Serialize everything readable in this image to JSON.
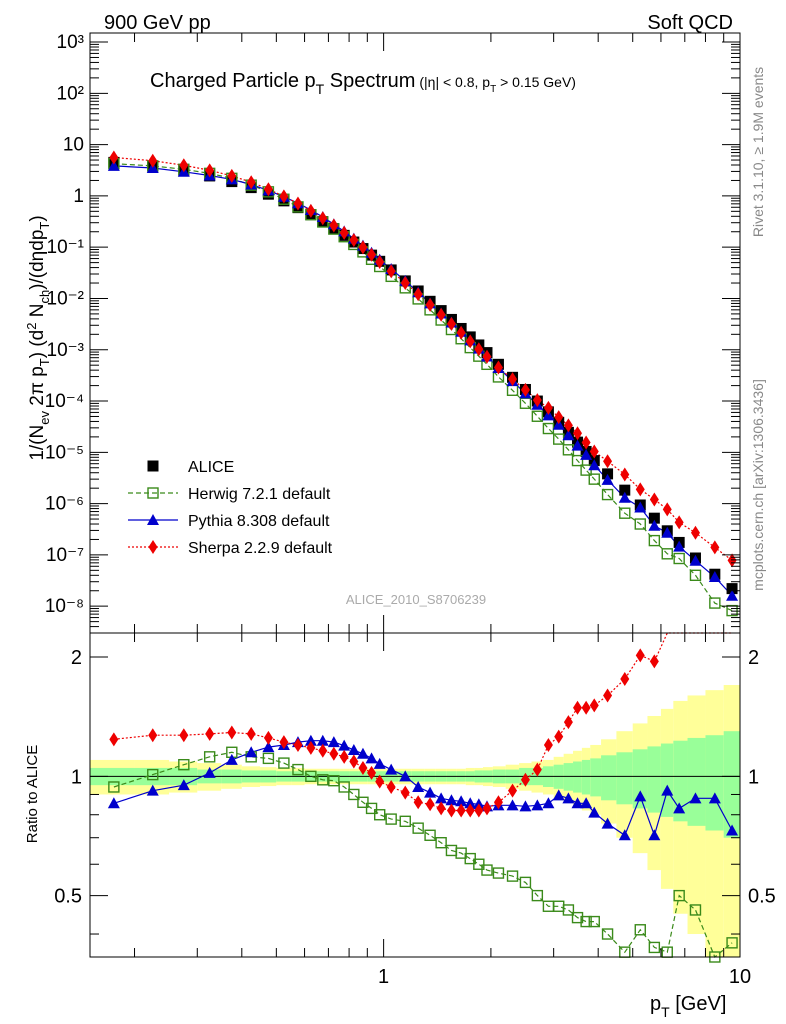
{
  "header": {
    "left": "900 GeV pp",
    "right": "Soft QCD",
    "side_top": "Rivet 3.1.10, ≥ 1.9M events",
    "side_bottom": "mcplots.cern.ch [arXiv:1306.3436]",
    "watermark": "ALICE_2010_S8706239"
  },
  "colors": {
    "alice": "#000000",
    "herwig": "#3a8a1a",
    "pythia": "#0000cc",
    "sherpa": "#ee0000",
    "band_inner": "#99ff99",
    "band_outer": "#ffff99"
  },
  "chart_data": [
    {
      "type": "scatter",
      "title": "Charged Particle p_T Spectrum",
      "title_cut": "(|η| < 0.8, p_T > 0.15 GeV)",
      "ylabel": "1/(N_ev 2π p_T) (d²N_ch)/(dηdp_T)",
      "yscale": "log",
      "xscale": "log",
      "xlim": [
        0.15,
        10
      ],
      "ylim": [
        3e-09,
        1500
      ],
      "yticks": [
        "10⁻⁸",
        "10⁻⁷",
        "10⁻⁶",
        "10⁻⁵",
        "10⁻⁴",
        "10⁻³",
        "10⁻²",
        "10⁻¹",
        "1",
        "10",
        "10²",
        "10³"
      ],
      "legend_position": "bottom-left",
      "x": [
        0.175,
        0.225,
        0.275,
        0.325,
        0.375,
        0.425,
        0.475,
        0.525,
        0.575,
        0.625,
        0.675,
        0.725,
        0.775,
        0.825,
        0.875,
        0.925,
        0.975,
        1.05,
        1.15,
        1.25,
        1.35,
        1.45,
        1.55,
        1.65,
        1.75,
        1.85,
        1.95,
        2.1,
        2.3,
        2.5,
        2.7,
        2.9,
        3.1,
        3.3,
        3.5,
        3.7,
        3.9,
        4.25,
        4.75,
        5.25,
        5.75,
        6.25,
        6.75,
        7.5,
        8.5,
        9.5
      ],
      "series": [
        {
          "name": "ALICE",
          "marker": "square",
          "values": [
            4.5,
            3.8,
            3.1,
            2.45,
            1.9,
            1.45,
            1.08,
            0.8,
            0.59,
            0.43,
            0.315,
            0.23,
            0.17,
            0.126,
            0.094,
            0.07,
            0.053,
            0.036,
            0.022,
            0.014,
            0.0088,
            0.0058,
            0.0039,
            0.0026,
            0.00178,
            0.00124,
            0.00088,
            0.00052,
            0.00029,
            0.000168,
            0.0001,
            6.15e-05,
            3.85e-05,
            2.45e-05,
            1.58e-05,
            1.04e-05,
            6.9e-06,
            3.8e-06,
            1.83e-06,
            9.4e-07,
            5.2e-07,
            2.95e-07,
            1.75e-07,
            8.7e-08,
            4.2e-08,
            2.2e-08
          ]
        },
        {
          "name": "Herwig 7.2.1 default",
          "marker": "open-square",
          "values": [
            4.25,
            3.85,
            3.3,
            2.75,
            2.2,
            1.62,
            1.2,
            0.86,
            0.61,
            0.43,
            0.31,
            0.225,
            0.16,
            0.113,
            0.081,
            0.058,
            0.042,
            0.027,
            0.0161,
            0.0098,
            0.006,
            0.0038,
            0.00248,
            0.00164,
            0.0011,
            0.00075,
            0.00052,
            0.000295,
            0.000162,
            9.05e-05,
            5.05e-05,
            2.91e-05,
            1.81e-05,
            1.12e-05,
            6.9e-06,
            4.5e-06,
            3e-06,
            1.5e-06,
            6.5e-07,
            4e-07,
            1.9e-07,
            1.05e-07,
            8.5e-08,
            4e-08,
            1.15e-08,
            8.2e-09
          ]
        },
        {
          "name": "Pythia 8.308 default",
          "marker": "triangle",
          "values": [
            3.85,
            3.5,
            2.95,
            2.5,
            2.1,
            1.67,
            1.28,
            0.96,
            0.72,
            0.53,
            0.387,
            0.28,
            0.203,
            0.147,
            0.107,
            0.078,
            0.057,
            0.0375,
            0.022,
            0.0132,
            0.008,
            0.0051,
            0.0034,
            0.00225,
            0.00152,
            0.00105,
            0.00074,
            0.00044,
            0.000245,
            0.000141,
            8.45e-05,
            5.25e-05,
            3.45e-05,
            2.15e-05,
            1.35e-05,
            8.9e-06,
            5.6e-06,
            2.9e-06,
            1.3e-06,
            8.4e-07,
            3.7e-07,
            2.7e-07,
            1.45e-07,
            7.7e-08,
            3.7e-08,
            1.6e-08
          ]
        },
        {
          "name": "Sherpa 2.2.9 default",
          "marker": "diamond",
          "values": [
            5.6,
            4.85,
            3.95,
            3.15,
            2.45,
            1.85,
            1.35,
            0.98,
            0.71,
            0.51,
            0.366,
            0.264,
            0.19,
            0.137,
            0.099,
            0.071,
            0.0515,
            0.034,
            0.02,
            0.0121,
            0.0075,
            0.0048,
            0.0032,
            0.00214,
            0.00146,
            0.00102,
            0.00073,
            0.00045,
            0.000268,
            0.000165,
            0.000104,
            7.35e-05,
            4.85e-05,
            3.35e-05,
            2.35e-05,
            1.55e-05,
            1.04e-05,
            6.7e-06,
            3.7e-06,
            1.9e-06,
            1.2e-06,
            7.7e-07,
            4.3e-07,
            2.7e-07,
            1.4e-07,
            7.8e-08
          ]
        }
      ]
    },
    {
      "type": "scatter",
      "ylabel": "Ratio to ALICE",
      "xlabel": "p_T [GeV]",
      "xscale": "log",
      "xlim": [
        0.15,
        10
      ],
      "ylim": [
        0.35,
        2.3
      ],
      "yticks": [
        "0.5",
        "1",
        "2"
      ],
      "xticks": [
        "1",
        "10"
      ],
      "reference_line": 1,
      "band_inner": [
        0.05,
        0.05,
        0.05,
        0.04,
        0.04,
        0.035,
        0.035,
        0.03,
        0.03,
        0.03,
        0.03,
        0.03,
        0.03,
        0.03,
        0.03,
        0.03,
        0.03,
        0.03,
        0.03,
        0.03,
        0.03,
        0.03,
        0.03,
        0.03,
        0.03,
        0.035,
        0.035,
        0.04,
        0.04,
        0.05,
        0.05,
        0.06,
        0.07,
        0.08,
        0.09,
        0.1,
        0.11,
        0.13,
        0.15,
        0.17,
        0.19,
        0.21,
        0.23,
        0.25,
        0.27,
        0.3
      ],
      "band_outer": [
        0.1,
        0.1,
        0.09,
        0.08,
        0.07,
        0.06,
        0.055,
        0.05,
        0.05,
        0.045,
        0.045,
        0.045,
        0.045,
        0.045,
        0.045,
        0.045,
        0.045,
        0.045,
        0.045,
        0.045,
        0.045,
        0.045,
        0.045,
        0.045,
        0.05,
        0.05,
        0.055,
        0.06,
        0.07,
        0.08,
        0.09,
        0.1,
        0.12,
        0.14,
        0.16,
        0.18,
        0.2,
        0.24,
        0.3,
        0.36,
        0.42,
        0.48,
        0.55,
        0.6,
        0.65,
        0.7
      ],
      "series": [
        {
          "name": "Herwig 7.2.1 default",
          "values": [
            0.94,
            1.01,
            1.07,
            1.12,
            1.15,
            1.12,
            1.11,
            1.08,
            1.04,
            1.0,
            0.98,
            0.975,
            0.94,
            0.9,
            0.86,
            0.83,
            0.8,
            0.78,
            0.77,
            0.74,
            0.71,
            0.68,
            0.65,
            0.64,
            0.62,
            0.6,
            0.58,
            0.57,
            0.56,
            0.54,
            0.5,
            0.47,
            0.47,
            0.46,
            0.44,
            0.43,
            0.43,
            0.4,
            0.36,
            0.41,
            0.37,
            0.36,
            0.5,
            0.46,
            0.27,
            0.38
          ]
        },
        {
          "name": "Pythia 8.308 default",
          "values": [
            0.855,
            0.92,
            0.95,
            1.02,
            1.1,
            1.15,
            1.185,
            1.2,
            1.22,
            1.23,
            1.23,
            1.22,
            1.195,
            1.165,
            1.14,
            1.11,
            1.075,
            1.04,
            1.0,
            0.94,
            0.91,
            0.88,
            0.87,
            0.865,
            0.855,
            0.85,
            0.84,
            0.845,
            0.845,
            0.84,
            0.845,
            0.855,
            0.895,
            0.88,
            0.855,
            0.855,
            0.81,
            0.76,
            0.71,
            0.89,
            0.71,
            0.92,
            0.83,
            0.88,
            0.88,
            0.73
          ]
        },
        {
          "name": "Sherpa 2.2.9 default",
          "values": [
            1.24,
            1.27,
            1.27,
            1.28,
            1.29,
            1.28,
            1.25,
            1.22,
            1.2,
            1.18,
            1.16,
            1.14,
            1.12,
            1.09,
            1.05,
            1.02,
            0.97,
            0.94,
            0.91,
            0.86,
            0.85,
            0.83,
            0.82,
            0.82,
            0.82,
            0.82,
            0.83,
            0.86,
            0.92,
            0.98,
            1.04,
            1.2,
            1.26,
            1.37,
            1.49,
            1.49,
            1.51,
            1.6,
            1.76,
            2.02,
            1.95,
            2.3,
            2.3,
            2.3,
            2.3,
            2.3
          ]
        }
      ]
    }
  ]
}
